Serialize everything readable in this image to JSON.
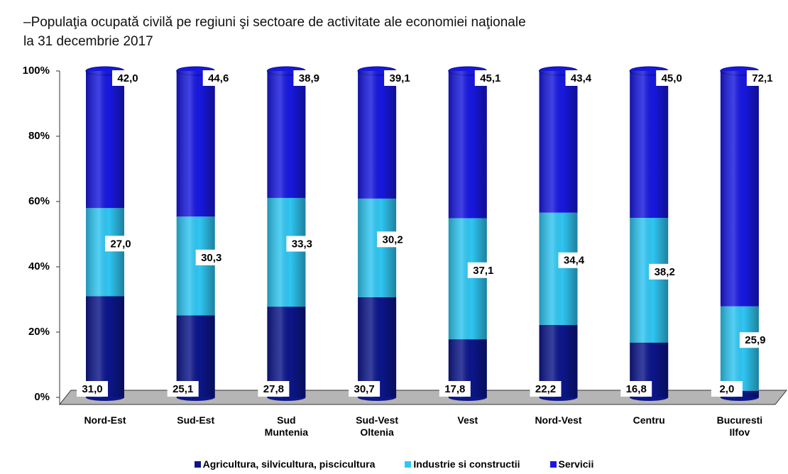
{
  "chart_data": {
    "type": "stacked_bar",
    "title": [
      "–Populaţia ocupată civilă pe regiuni şi sectoare de activitate ale economiei naţionale",
      "la 31 decembrie 2017"
    ],
    "categories": [
      "Nord-Est",
      "Sud-Est",
      "Sud Muntenia",
      "Sud-Vest Oltenia",
      "Vest",
      "Nord-Vest",
      "Centru",
      "Bucuresti Ilfov"
    ],
    "series": [
      {
        "name": "Agricultura, silvicultura, piscicultura",
        "color": "#0c168a",
        "values": [
          31.0,
          25.1,
          27.8,
          30.7,
          17.8,
          22.2,
          16.8,
          2.0
        ],
        "value_labels": [
          "31,0",
          "25,1",
          "27,8",
          "30,7",
          "17,8",
          "22,2",
          "16,8",
          "2,0"
        ]
      },
      {
        "name": "Industrie si constructii",
        "color": "#2fc6f2",
        "values": [
          27.0,
          30.3,
          33.3,
          30.2,
          37.1,
          34.4,
          38.2,
          25.9
        ],
        "value_labels": [
          "27,0",
          "30,3",
          "33,3",
          "30,2",
          "37,1",
          "34,4",
          "38,2",
          "25,9"
        ]
      },
      {
        "name": "Servicii",
        "color": "#1818e0",
        "values": [
          42.0,
          44.6,
          38.9,
          39.1,
          45.1,
          43.4,
          45.0,
          72.1
        ],
        "value_labels": [
          "42,0",
          "44,6",
          "38,9",
          "39,1",
          "45,1",
          "43,4",
          "45,0",
          "72,1"
        ]
      }
    ],
    "ylim": [
      0,
      100
    ],
    "yticks": [
      {
        "value": 0,
        "label": "0%"
      },
      {
        "value": 20,
        "label": "20%"
      },
      {
        "value": 40,
        "label": "40%"
      },
      {
        "value": 60,
        "label": "60%"
      },
      {
        "value": 80,
        "label": "80%"
      },
      {
        "value": 100,
        "label": "100%"
      }
    ],
    "legend": "bottom"
  }
}
